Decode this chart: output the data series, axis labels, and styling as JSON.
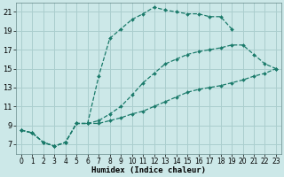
{
  "xlabel": "Humidex (Indice chaleur)",
  "background_color": "#cce8e8",
  "grid_color": "#aacece",
  "line_color": "#1a7a6a",
  "xlim": [
    -0.5,
    23.5
  ],
  "ylim": [
    6,
    22
  ],
  "yticks": [
    7,
    9,
    11,
    13,
    15,
    17,
    19,
    21
  ],
  "xticks": [
    0,
    1,
    2,
    3,
    4,
    5,
    6,
    7,
    8,
    9,
    10,
    11,
    12,
    13,
    14,
    15,
    16,
    17,
    18,
    19,
    20,
    21,
    22,
    23
  ],
  "series": [
    {
      "x": [
        0,
        1,
        2,
        3,
        4,
        5,
        6,
        7,
        8,
        9,
        10,
        11,
        12,
        13,
        14,
        15,
        16,
        17,
        18,
        19
      ],
      "y": [
        8.5,
        8.2,
        7.2,
        6.8,
        7.2,
        9.2,
        9.2,
        14.2,
        18.2,
        19.2,
        20.2,
        20.8,
        21.5,
        21.2,
        21.0,
        20.8,
        20.8,
        20.5,
        20.5,
        19.2
      ]
    },
    {
      "x": [
        0,
        1,
        2,
        3,
        4,
        5,
        6,
        7,
        8,
        9,
        10,
        11,
        12,
        13,
        14,
        15,
        16,
        17,
        18,
        19,
        20,
        21,
        22,
        23
      ],
      "y": [
        8.5,
        8.2,
        7.2,
        6.8,
        7.2,
        9.2,
        9.2,
        9.5,
        10.2,
        11.0,
        12.2,
        13.5,
        14.5,
        15.5,
        16.0,
        16.5,
        16.8,
        17.0,
        17.2,
        17.5,
        17.5,
        16.5,
        15.5,
        15.0
      ]
    },
    {
      "x": [
        0,
        1,
        2,
        3,
        4,
        5,
        6,
        7,
        8,
        9,
        10,
        11,
        12,
        13,
        14,
        15,
        16,
        17,
        18,
        19,
        20,
        21,
        22,
        23
      ],
      "y": [
        8.5,
        8.2,
        7.2,
        6.8,
        7.2,
        9.2,
        9.2,
        9.2,
        9.5,
        9.8,
        10.2,
        10.5,
        11.0,
        11.5,
        12.0,
        12.5,
        12.8,
        13.0,
        13.2,
        13.5,
        13.8,
        14.2,
        14.5,
        15.0
      ]
    }
  ]
}
